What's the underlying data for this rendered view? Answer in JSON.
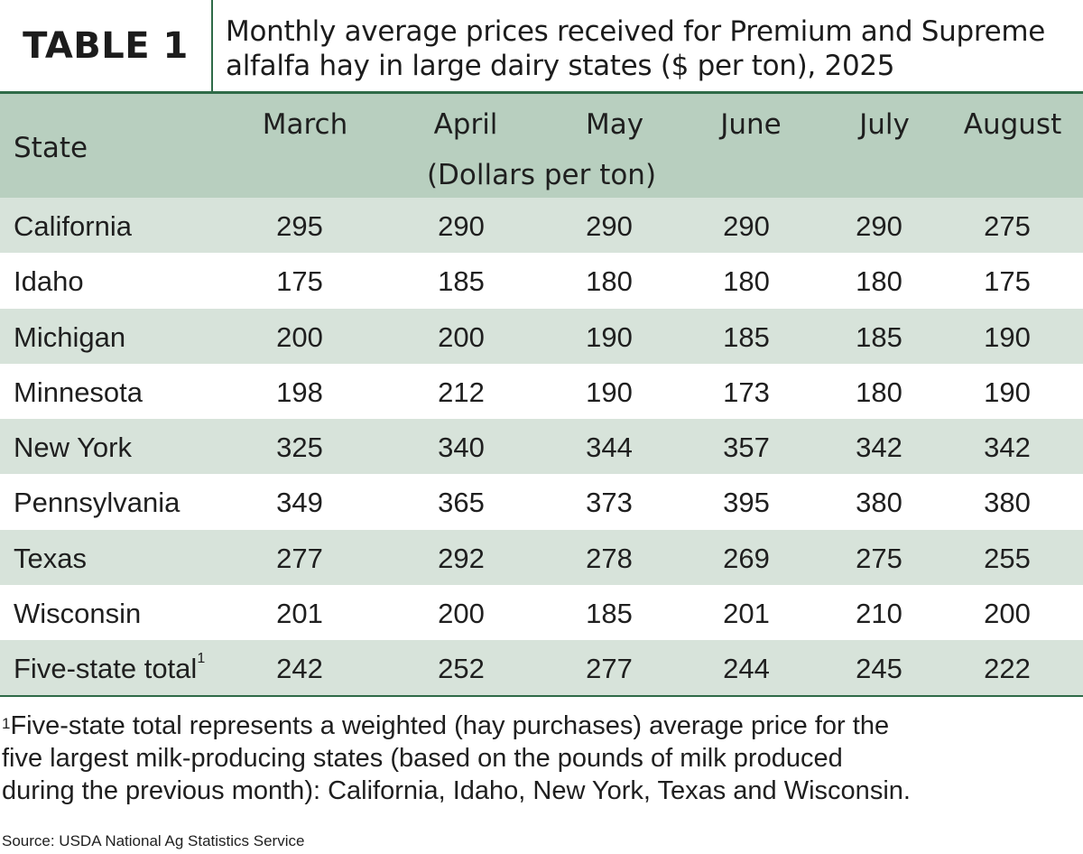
{
  "table": {
    "label": "TABLE 1",
    "title_line1": "Monthly average prices received for Premium and Supreme",
    "title_line2": "alfalfa hay in large dairy states ($ per ton), 2025",
    "state_header": "State",
    "months": [
      "March",
      "April",
      "May",
      "June",
      "July",
      "August"
    ],
    "units": "(Dollars per ton)",
    "rows": [
      {
        "state": "California",
        "values": [
          "295",
          "290",
          "290",
          "290",
          "290",
          "275"
        ]
      },
      {
        "state": "Idaho",
        "values": [
          "175",
          "185",
          "180",
          "180",
          "180",
          "175"
        ]
      },
      {
        "state": "Michigan",
        "values": [
          "200",
          "200",
          "190",
          "185",
          "185",
          "190"
        ]
      },
      {
        "state": "Minnesota",
        "values": [
          "198",
          "212",
          "190",
          "173",
          "180",
          "190"
        ]
      },
      {
        "state": "New York",
        "values": [
          "325",
          "340",
          "344",
          "357",
          "342",
          "342"
        ]
      },
      {
        "state": "Pennsylvania",
        "values": [
          "349",
          "365",
          "373",
          "395",
          "380",
          "380"
        ]
      },
      {
        "state": "Texas",
        "values": [
          "277",
          "292",
          "278",
          "269",
          "275",
          "255"
        ]
      },
      {
        "state": "Wisconsin",
        "values": [
          "201",
          "200",
          "185",
          "201",
          "210",
          "200"
        ]
      },
      {
        "state": "Five-state total",
        "footnote_mark": "1",
        "values": [
          "242",
          "252",
          "277",
          "244",
          "245",
          "222"
        ]
      }
    ]
  },
  "footnote": {
    "mark": "1",
    "line1": "Five-state total represents a weighted (hay purchases) average price for the",
    "line2": "five largest milk-producing states (based on the pounds of milk produced",
    "line3": "during the previous month): California, Idaho, New York, Texas and Wisconsin."
  },
  "source": "Source: USDA National Ag Statistics Service",
  "colors": {
    "accent_green": "#2f6b48",
    "header_bg": "#b8cfbf",
    "alt_row_bg": "#d7e3da"
  }
}
